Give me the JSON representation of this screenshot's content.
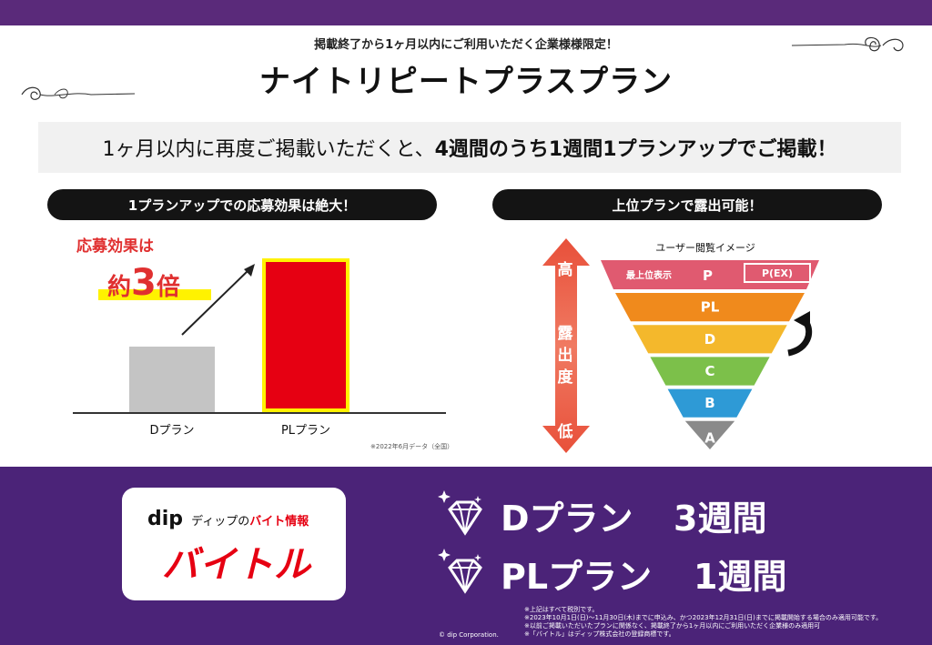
{
  "header": {
    "subtitle": "掲載終了から1ヶ月以内にご利用いただく企業様様限定！",
    "title": "ナイトリピートプラスプラン"
  },
  "banner": {
    "text_normal": "1ヶ月以内に再度ご掲載いただくと、",
    "text_bold": "4週間のうち1週間1プランアップでご掲載！"
  },
  "left_panel": {
    "heading": "1プランアップでの応募効果は絶大！",
    "effect_label": "応募効果は",
    "times_prefix": "約",
    "times_number": "3",
    "times_suffix": "倍",
    "categories": [
      "Dプラン",
      "PLプラン"
    ],
    "source_note": "※2022年6月データ（全国）"
  },
  "chart_data": {
    "type": "bar",
    "title": "",
    "categories": [
      "Dプラン",
      "PLプラン"
    ],
    "values": [
      1,
      3
    ],
    "xlabel": "",
    "ylabel": "",
    "annotation": "応募効果は 約3倍"
  },
  "right_panel": {
    "heading": "上位プランで露出可能！",
    "funnel_title": "ユーザー閲覧イメージ",
    "high_label": "高",
    "exposure_chars": [
      "露",
      "出",
      "度"
    ],
    "low_label": "低",
    "top_tier_label": "最上位表示",
    "top_tier_plan": "P",
    "top_tier_ex": "P(EX)",
    "tiers": [
      "PL",
      "D",
      "C",
      "B",
      "A"
    ],
    "tier_colors": [
      "#f08a1c",
      "#f4b82c",
      "#7cc04a",
      "#2e9ad6",
      "#8a8a8a"
    ],
    "top_tier_color": "#e05a70"
  },
  "bottom": {
    "logo_dip": "dip",
    "logo_sub_1": "ディップの",
    "logo_sub_2": "バイト情報",
    "logo_main": "バイトル",
    "plans": [
      {
        "name": "Dプラン",
        "weeks": "3週間"
      },
      {
        "name": "PLプラン",
        "weeks": "1週間"
      }
    ],
    "notes": [
      "※上記はすべて税別です。",
      "※2023年10月1日(日)～11月30日(木)までに申込み、かつ2023年12月31日(日)までに掲載開始する場合のみ適用可能です。",
      "※以前ご掲載いただいたプランに関係なく、掲載終了から1ヶ月以内にご利用いただく企業様のみ適用可",
      "※「バイトル」はディップ株式会社の登録商標です。"
    ],
    "copyright": "© dip Corporation."
  },
  "colors": {
    "purple": "#4b2378",
    "red": "#e60012",
    "yellow": "#fff200"
  }
}
